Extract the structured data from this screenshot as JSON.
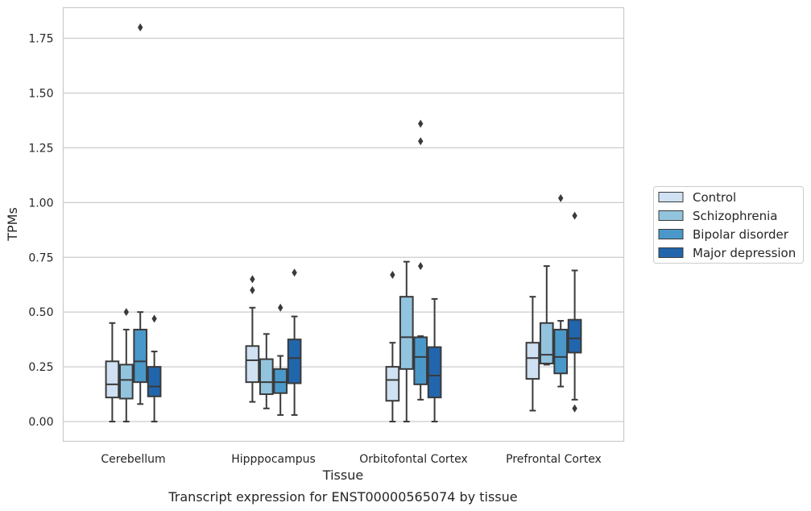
{
  "chart_data": {
    "type": "box",
    "xlabel": "Tissue",
    "ylabel": "TPMs",
    "caption": "Transcript expression for ENST00000565074 by tissue",
    "ylim": [
      -0.09,
      1.89
    ],
    "yticks": [
      0.0,
      0.25,
      0.5,
      0.75,
      1.0,
      1.25,
      1.5,
      1.75
    ],
    "ytick_labels": [
      "0.00",
      "0.25",
      "0.50",
      "0.75",
      "1.00",
      "1.25",
      "1.50",
      "1.75"
    ],
    "categories": [
      "Cerebellum",
      "Hipppocampus",
      "Orbitofontal Cortex",
      "Prefrontal Cortex"
    ],
    "grid": "horizontal",
    "legend_position": "right",
    "series": [
      {
        "name": "Control",
        "color": "#cfe1f2",
        "boxes": [
          {
            "whislo": 0.0,
            "q1": 0.11,
            "med": 0.17,
            "q3": 0.275,
            "whishi": 0.45,
            "fliers": []
          },
          {
            "whislo": 0.09,
            "q1": 0.18,
            "med": 0.28,
            "q3": 0.345,
            "whishi": 0.52,
            "fliers": [
              0.6,
              0.65
            ]
          },
          {
            "whislo": 0.0,
            "q1": 0.095,
            "med": 0.19,
            "q3": 0.25,
            "whishi": 0.36,
            "fliers": [
              0.67
            ]
          },
          {
            "whislo": 0.05,
            "q1": 0.195,
            "med": 0.29,
            "q3": 0.36,
            "whishi": 0.57,
            "fliers": []
          }
        ]
      },
      {
        "name": "Schizophrenia",
        "color": "#93c4de",
        "boxes": [
          {
            "whislo": 0.0,
            "q1": 0.105,
            "med": 0.19,
            "q3": 0.26,
            "whishi": 0.42,
            "fliers": [
              0.5
            ]
          },
          {
            "whislo": 0.06,
            "q1": 0.125,
            "med": 0.18,
            "q3": 0.285,
            "whishi": 0.4,
            "fliers": []
          },
          {
            "whislo": 0.0,
            "q1": 0.24,
            "med": 0.385,
            "q3": 0.57,
            "whishi": 0.73,
            "fliers": []
          },
          {
            "whislo": 0.26,
            "q1": 0.265,
            "med": 0.305,
            "q3": 0.45,
            "whishi": 0.71,
            "fliers": []
          }
        ]
      },
      {
        "name": "Bipolar disorder",
        "color": "#4a98c9",
        "boxes": [
          {
            "whislo": 0.08,
            "q1": 0.18,
            "med": 0.275,
            "q3": 0.42,
            "whishi": 0.5,
            "fliers": [
              1.8
            ]
          },
          {
            "whislo": 0.03,
            "q1": 0.13,
            "med": 0.18,
            "q3": 0.24,
            "whishi": 0.3,
            "fliers": [
              0.52
            ]
          },
          {
            "whislo": 0.1,
            "q1": 0.17,
            "med": 0.295,
            "q3": 0.385,
            "whishi": 0.39,
            "fliers": [
              0.71,
              1.28,
              1.36
            ]
          },
          {
            "whislo": 0.16,
            "q1": 0.22,
            "med": 0.295,
            "q3": 0.42,
            "whishi": 0.46,
            "fliers": [
              1.02
            ]
          }
        ]
      },
      {
        "name": "Major depression",
        "color": "#2166ac",
        "boxes": [
          {
            "whislo": 0.0,
            "q1": 0.115,
            "med": 0.16,
            "q3": 0.25,
            "whishi": 0.32,
            "fliers": [
              0.47
            ]
          },
          {
            "whislo": 0.03,
            "q1": 0.175,
            "med": 0.29,
            "q3": 0.375,
            "whishi": 0.48,
            "fliers": [
              0.68
            ]
          },
          {
            "whislo": 0.0,
            "q1": 0.11,
            "med": 0.21,
            "q3": 0.34,
            "whishi": 0.56,
            "fliers": []
          },
          {
            "whislo": 0.1,
            "q1": 0.315,
            "med": 0.38,
            "q3": 0.465,
            "whishi": 0.69,
            "fliers": [
              0.06,
              0.94
            ]
          }
        ]
      }
    ]
  }
}
